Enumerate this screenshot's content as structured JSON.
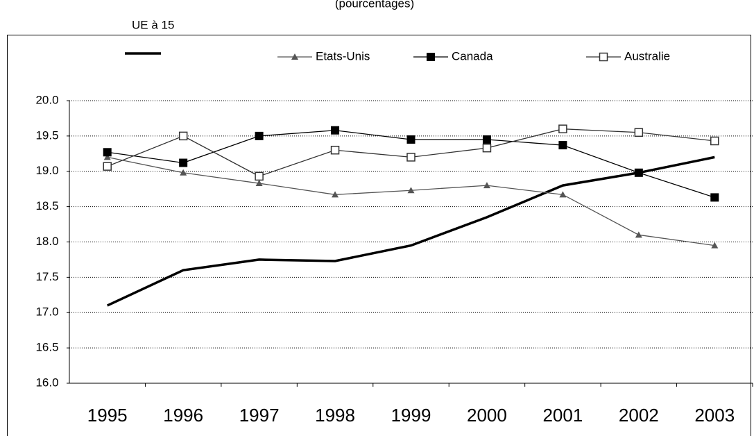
{
  "chart_data": {
    "type": "line",
    "subtitle": "(pourcentages)",
    "categories": [
      "1995",
      "1996",
      "1997",
      "1998",
      "1999",
      "2000",
      "2001",
      "2002",
      "2003"
    ],
    "series": [
      {
        "name": "UE à 15",
        "color": "#000000",
        "values": [
          17.1,
          17.6,
          17.75,
          17.73,
          17.95,
          18.35,
          18.8,
          18.98,
          19.2
        ]
      },
      {
        "name": "Etats-Unis",
        "color": "#555555",
        "marker": "triangle",
        "values": [
          19.2,
          18.98,
          18.83,
          18.67,
          18.73,
          18.8,
          18.67,
          18.1,
          17.95
        ]
      },
      {
        "name": "Canada",
        "color": "#000000",
        "marker": "square",
        "values": [
          19.27,
          19.12,
          19.5,
          19.58,
          19.45,
          19.45,
          19.37,
          18.98,
          18.63
        ]
      },
      {
        "name": "Australie",
        "color": "#333333",
        "marker": "open-square",
        "values": [
          19.07,
          19.5,
          18.93,
          19.3,
          19.2,
          19.33,
          19.6,
          19.55,
          19.43
        ]
      }
    ],
    "ylim": [
      16,
      20
    ],
    "yticks": [
      {
        "value": 16,
        "label": "16.0"
      },
      16.5,
      {
        "value": 17,
        "label": "17.0"
      },
      17.5,
      {
        "value": 18,
        "label": "18.0"
      },
      18.5,
      {
        "value": 19,
        "label": "19.0"
      },
      19.5,
      {
        "value": 20,
        "label": "20.0"
      }
    ],
    "grid": true
  }
}
